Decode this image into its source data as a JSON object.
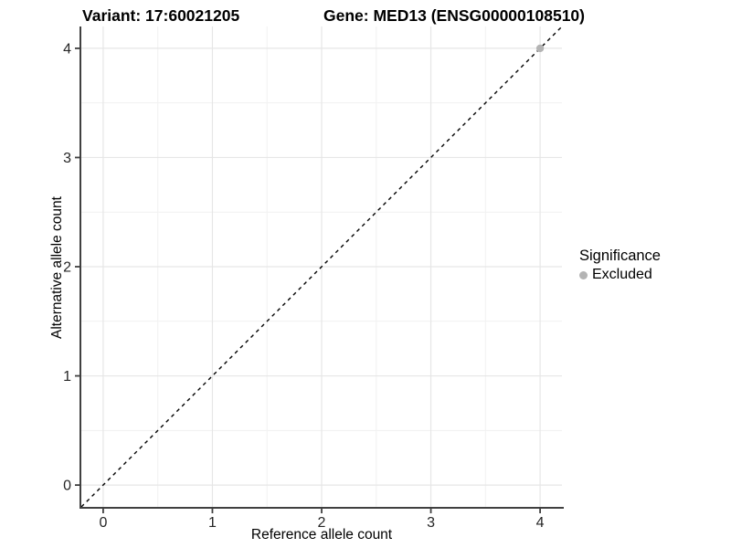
{
  "chart_data": {
    "type": "scatter",
    "title_left": "Variant: 17:60021205",
    "title_right": "Gene: MED13 (ENSG00000108510)",
    "xlabel": "Reference allele count",
    "ylabel": "Alternative allele count",
    "xlim": [
      -0.2,
      4.2
    ],
    "ylim": [
      -0.2,
      4.2
    ],
    "x_ticks": [
      0,
      1,
      2,
      3,
      4
    ],
    "y_ticks": [
      0,
      1,
      2,
      3,
      4
    ],
    "x_minor": [
      0.5,
      1.5,
      2.5,
      3.5
    ],
    "y_minor": [
      0.5,
      1.5,
      2.5,
      3.5
    ],
    "grid": "major+minor",
    "reference_line": {
      "slope": 1,
      "intercept": 0,
      "style": "dashed",
      "color": "#000000"
    },
    "series": [
      {
        "name": "Excluded",
        "color": "#b4b4b4",
        "points": [
          [
            4,
            4
          ]
        ],
        "point_radius": 4.2
      }
    ],
    "legend": {
      "position": "right",
      "title": "Significance",
      "entries": [
        {
          "label": "Excluded",
          "color": "#b4b4b4"
        }
      ]
    },
    "theme": {
      "background": "#ffffff",
      "grid_major_color": "#e6e6e6",
      "grid_minor_color": "#f1f1f1",
      "axis_line_color": "#404040",
      "tick_color": "#404040",
      "tick_label_color": "#262626"
    }
  }
}
